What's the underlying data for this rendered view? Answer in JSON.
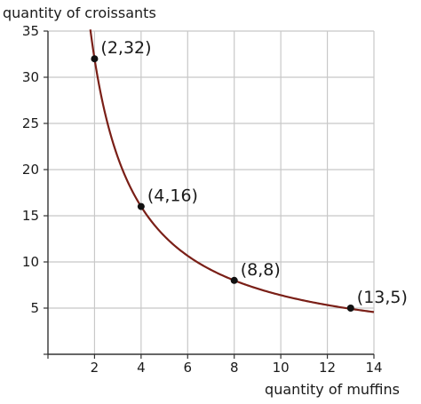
{
  "chart_data": {
    "type": "line",
    "title": "",
    "xlabel": "quantity of muffins",
    "ylabel": "quantity of croissants",
    "xlim": [
      0,
      14
    ],
    "ylim": [
      0,
      35
    ],
    "x_ticks": [
      2,
      4,
      6,
      8,
      10,
      12,
      14
    ],
    "y_ticks": [
      5,
      10,
      15,
      20,
      25,
      30,
      35
    ],
    "grid": true,
    "series": [
      {
        "function": "y = 64 / x",
        "x_range": [
          1.82,
          14
        ],
        "color": "#7a1f17"
      }
    ],
    "points": [
      {
        "x": 2,
        "y": 32,
        "label": "(2,32)"
      },
      {
        "x": 4,
        "y": 16,
        "label": "(4,16)"
      },
      {
        "x": 8,
        "y": 8,
        "label": "(8,8)"
      },
      {
        "x": 13,
        "y": 5,
        "label": "(13,5)"
      }
    ]
  }
}
